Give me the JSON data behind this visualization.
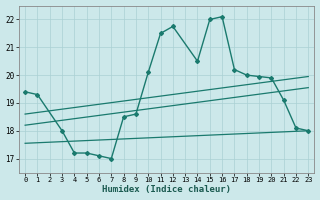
{
  "xlabel": "Humidex (Indice chaleur)",
  "background_color": "#cce8ea",
  "grid_color": "#aad0d4",
  "line_color": "#1a7a6e",
  "xlim": [
    -0.5,
    23.5
  ],
  "ylim": [
    16.5,
    22.5
  ],
  "xticks": [
    0,
    1,
    2,
    3,
    4,
    5,
    6,
    7,
    8,
    9,
    10,
    11,
    12,
    13,
    14,
    15,
    16,
    17,
    18,
    19,
    20,
    21,
    22,
    23
  ],
  "yticks": [
    17,
    18,
    19,
    20,
    21,
    22
  ],
  "line_main_x": [
    0,
    1,
    3,
    4,
    5,
    6,
    7,
    8,
    9,
    10,
    11,
    12,
    14,
    15,
    16,
    17,
    18,
    19,
    20,
    21,
    22,
    23
  ],
  "line_main_y": [
    19.4,
    19.3,
    18.0,
    17.2,
    17.2,
    17.1,
    17.0,
    18.5,
    18.6,
    20.1,
    21.5,
    21.75,
    20.5,
    22.0,
    22.1,
    20.2,
    20.0,
    19.95,
    19.9,
    19.1,
    18.1,
    18.0
  ],
  "trend1_x": [
    0,
    23
  ],
  "trend1_y": [
    18.6,
    19.95
  ],
  "trend2_x": [
    0,
    23
  ],
  "trend2_y": [
    18.2,
    19.55
  ],
  "trend3_x": [
    0,
    23
  ],
  "trend3_y": [
    17.55,
    18.0
  ],
  "figsize": [
    3.2,
    2.0
  ],
  "dpi": 100
}
